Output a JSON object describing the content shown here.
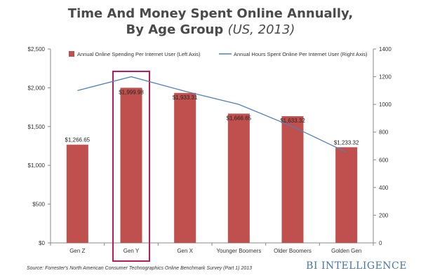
{
  "chart_data": {
    "type": "bar",
    "title": "Time And Money Spent Online Annually,",
    "title_line2": "By Age Group",
    "title_italic": "(US, 2013)",
    "categories": [
      "Gen Z",
      "Gen Y",
      "Gen X",
      "Younger Boomers",
      "Older Boomers",
      "Golden Gen"
    ],
    "series": [
      {
        "name": "Annual Online Spending Per Internet User (Left Axis)",
        "type": "bar",
        "axis": "left",
        "values": [
          1266.65,
          1999.98,
          1933.31,
          1666.65,
          1633.32,
          1233.32
        ],
        "labels": [
          "$1,266.65",
          "$1,999.98",
          "$1,933.31",
          "$1,666.65",
          "$1,633.32",
          "$1,233.32"
        ],
        "color": "#c0504d"
      },
      {
        "name": "Annual Hours Spent Online Per Internet User (Right Axis)",
        "type": "line",
        "axis": "right",
        "values": [
          1100,
          1200,
          1095,
          1000,
          840,
          655
        ],
        "color": "#4f81bd"
      }
    ],
    "left_axis": {
      "ylim": [
        0,
        2500
      ],
      "ticks": [
        0,
        500,
        1000,
        1500,
        2000,
        2500
      ],
      "tick_labels": [
        "$0",
        "$500",
        "$1,000",
        "$1,500",
        "$2,000",
        "$2,500"
      ]
    },
    "right_axis": {
      "ylim": [
        0,
        1400
      ],
      "ticks": [
        0,
        200,
        400,
        600,
        800,
        1000,
        1200,
        1400
      ],
      "tick_labels": [
        "0",
        "200",
        "400",
        "600",
        "800",
        "1000",
        "1200",
        "1400"
      ]
    },
    "highlighted_category": "Gen Y",
    "highlight_color": "#c0185a",
    "legend_placement": "top",
    "grid": false
  },
  "footer": {
    "source": "Source: Forrester's North American Consumer Technographics Online Benchmark Survey (Part 1) 2013",
    "brand": "BI INTELLIGENCE"
  }
}
